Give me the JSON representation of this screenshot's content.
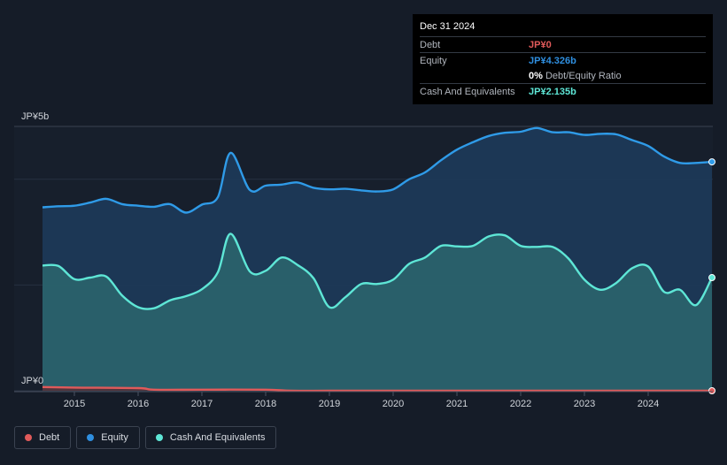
{
  "tooltip": {
    "date": "Dec 31 2024",
    "debt_label": "Debt",
    "debt_value": "JP¥0",
    "equity_label": "Equity",
    "equity_value": "JP¥4.326b",
    "ratio_value": "0%",
    "ratio_label": "Debt/Equity Ratio",
    "cash_label": "Cash And Equivalents",
    "cash_value": "JP¥2.135b"
  },
  "legend": [
    {
      "label": "Debt",
      "color": "#e05a5a"
    },
    {
      "label": "Equity",
      "color": "#2f8fe0"
    },
    {
      "label": "Cash And Equivalents",
      "color": "#5ee6d6"
    }
  ],
  "colors": {
    "debt": "#e05a5a",
    "equity": "#2f9be8",
    "cash": "#5ee6d6",
    "background": "#151c28"
  },
  "chart_data": {
    "type": "area",
    "y_unit": "JP¥ billions",
    "ylim": [
      0,
      5
    ],
    "xlim": [
      2014.5,
      2025.0
    ],
    "y_tick_labels": [
      "JP¥5b",
      "JP¥0"
    ],
    "y_ticks": [
      5,
      0
    ],
    "x_ticks": [
      2015,
      2016,
      2017,
      2018,
      2019,
      2020,
      2021,
      2022,
      2023,
      2024
    ],
    "x_tick_labels": [
      "2015",
      "2016",
      "2017",
      "2018",
      "2019",
      "2020",
      "2021",
      "2022",
      "2023",
      "2024"
    ],
    "grid": "horizontal",
    "legend_position": "bottom-left",
    "series": [
      {
        "name": "Equity",
        "x": [
          2014.5,
          2014.75,
          2015.0,
          2015.25,
          2015.5,
          2015.75,
          2016.0,
          2016.25,
          2016.5,
          2016.75,
          2017.0,
          2017.25,
          2017.45,
          2017.75,
          2018.0,
          2018.25,
          2018.5,
          2018.75,
          2019.0,
          2019.25,
          2019.5,
          2019.75,
          2020.0,
          2020.25,
          2020.5,
          2020.75,
          2021.0,
          2021.25,
          2021.5,
          2021.75,
          2022.0,
          2022.25,
          2022.5,
          2022.75,
          2023.0,
          2023.25,
          2023.5,
          2023.75,
          2024.0,
          2024.25,
          2024.5,
          2024.75,
          2025.0
        ],
        "values": [
          3.47,
          3.49,
          3.5,
          3.56,
          3.63,
          3.53,
          3.5,
          3.48,
          3.53,
          3.37,
          3.52,
          3.66,
          4.5,
          3.8,
          3.88,
          3.9,
          3.94,
          3.84,
          3.81,
          3.82,
          3.79,
          3.77,
          3.81,
          4.0,
          4.13,
          4.36,
          4.56,
          4.7,
          4.82,
          4.88,
          4.9,
          4.97,
          4.89,
          4.89,
          4.84,
          4.86,
          4.85,
          4.74,
          4.63,
          4.43,
          4.31,
          4.31,
          4.33
        ]
      },
      {
        "name": "Cash And Equivalents",
        "x": [
          2014.5,
          2014.75,
          2015.0,
          2015.25,
          2015.5,
          2015.75,
          2016.0,
          2016.25,
          2016.5,
          2016.75,
          2017.0,
          2017.25,
          2017.45,
          2017.75,
          2018.0,
          2018.25,
          2018.5,
          2018.75,
          2019.0,
          2019.25,
          2019.5,
          2019.75,
          2020.0,
          2020.25,
          2020.5,
          2020.75,
          2021.0,
          2021.25,
          2021.5,
          2021.75,
          2022.0,
          2022.25,
          2022.5,
          2022.75,
          2023.0,
          2023.25,
          2023.5,
          2023.75,
          2024.0,
          2024.25,
          2024.5,
          2024.75,
          2025.0
        ],
        "values": [
          2.37,
          2.36,
          2.11,
          2.14,
          2.16,
          1.8,
          1.58,
          1.56,
          1.71,
          1.79,
          1.92,
          2.24,
          2.97,
          2.26,
          2.27,
          2.52,
          2.38,
          2.13,
          1.58,
          1.77,
          2.02,
          2.02,
          2.1,
          2.4,
          2.52,
          2.74,
          2.73,
          2.74,
          2.92,
          2.94,
          2.74,
          2.72,
          2.72,
          2.5,
          2.1,
          1.91,
          2.04,
          2.32,
          2.35,
          1.87,
          1.91,
          1.62,
          2.14
        ]
      },
      {
        "name": "Debt",
        "x": [
          2014.5,
          2015.0,
          2016.0,
          2016.25,
          2017.0,
          2018.0,
          2018.4,
          2019.0,
          2020.0,
          2021.0,
          2022.0,
          2023.0,
          2024.0,
          2025.0
        ],
        "values": [
          0.07,
          0.06,
          0.05,
          0.02,
          0.02,
          0.02,
          0.0,
          0.0,
          0.0,
          0.0,
          0.0,
          0.0,
          0.0,
          0.0
        ]
      }
    ]
  }
}
